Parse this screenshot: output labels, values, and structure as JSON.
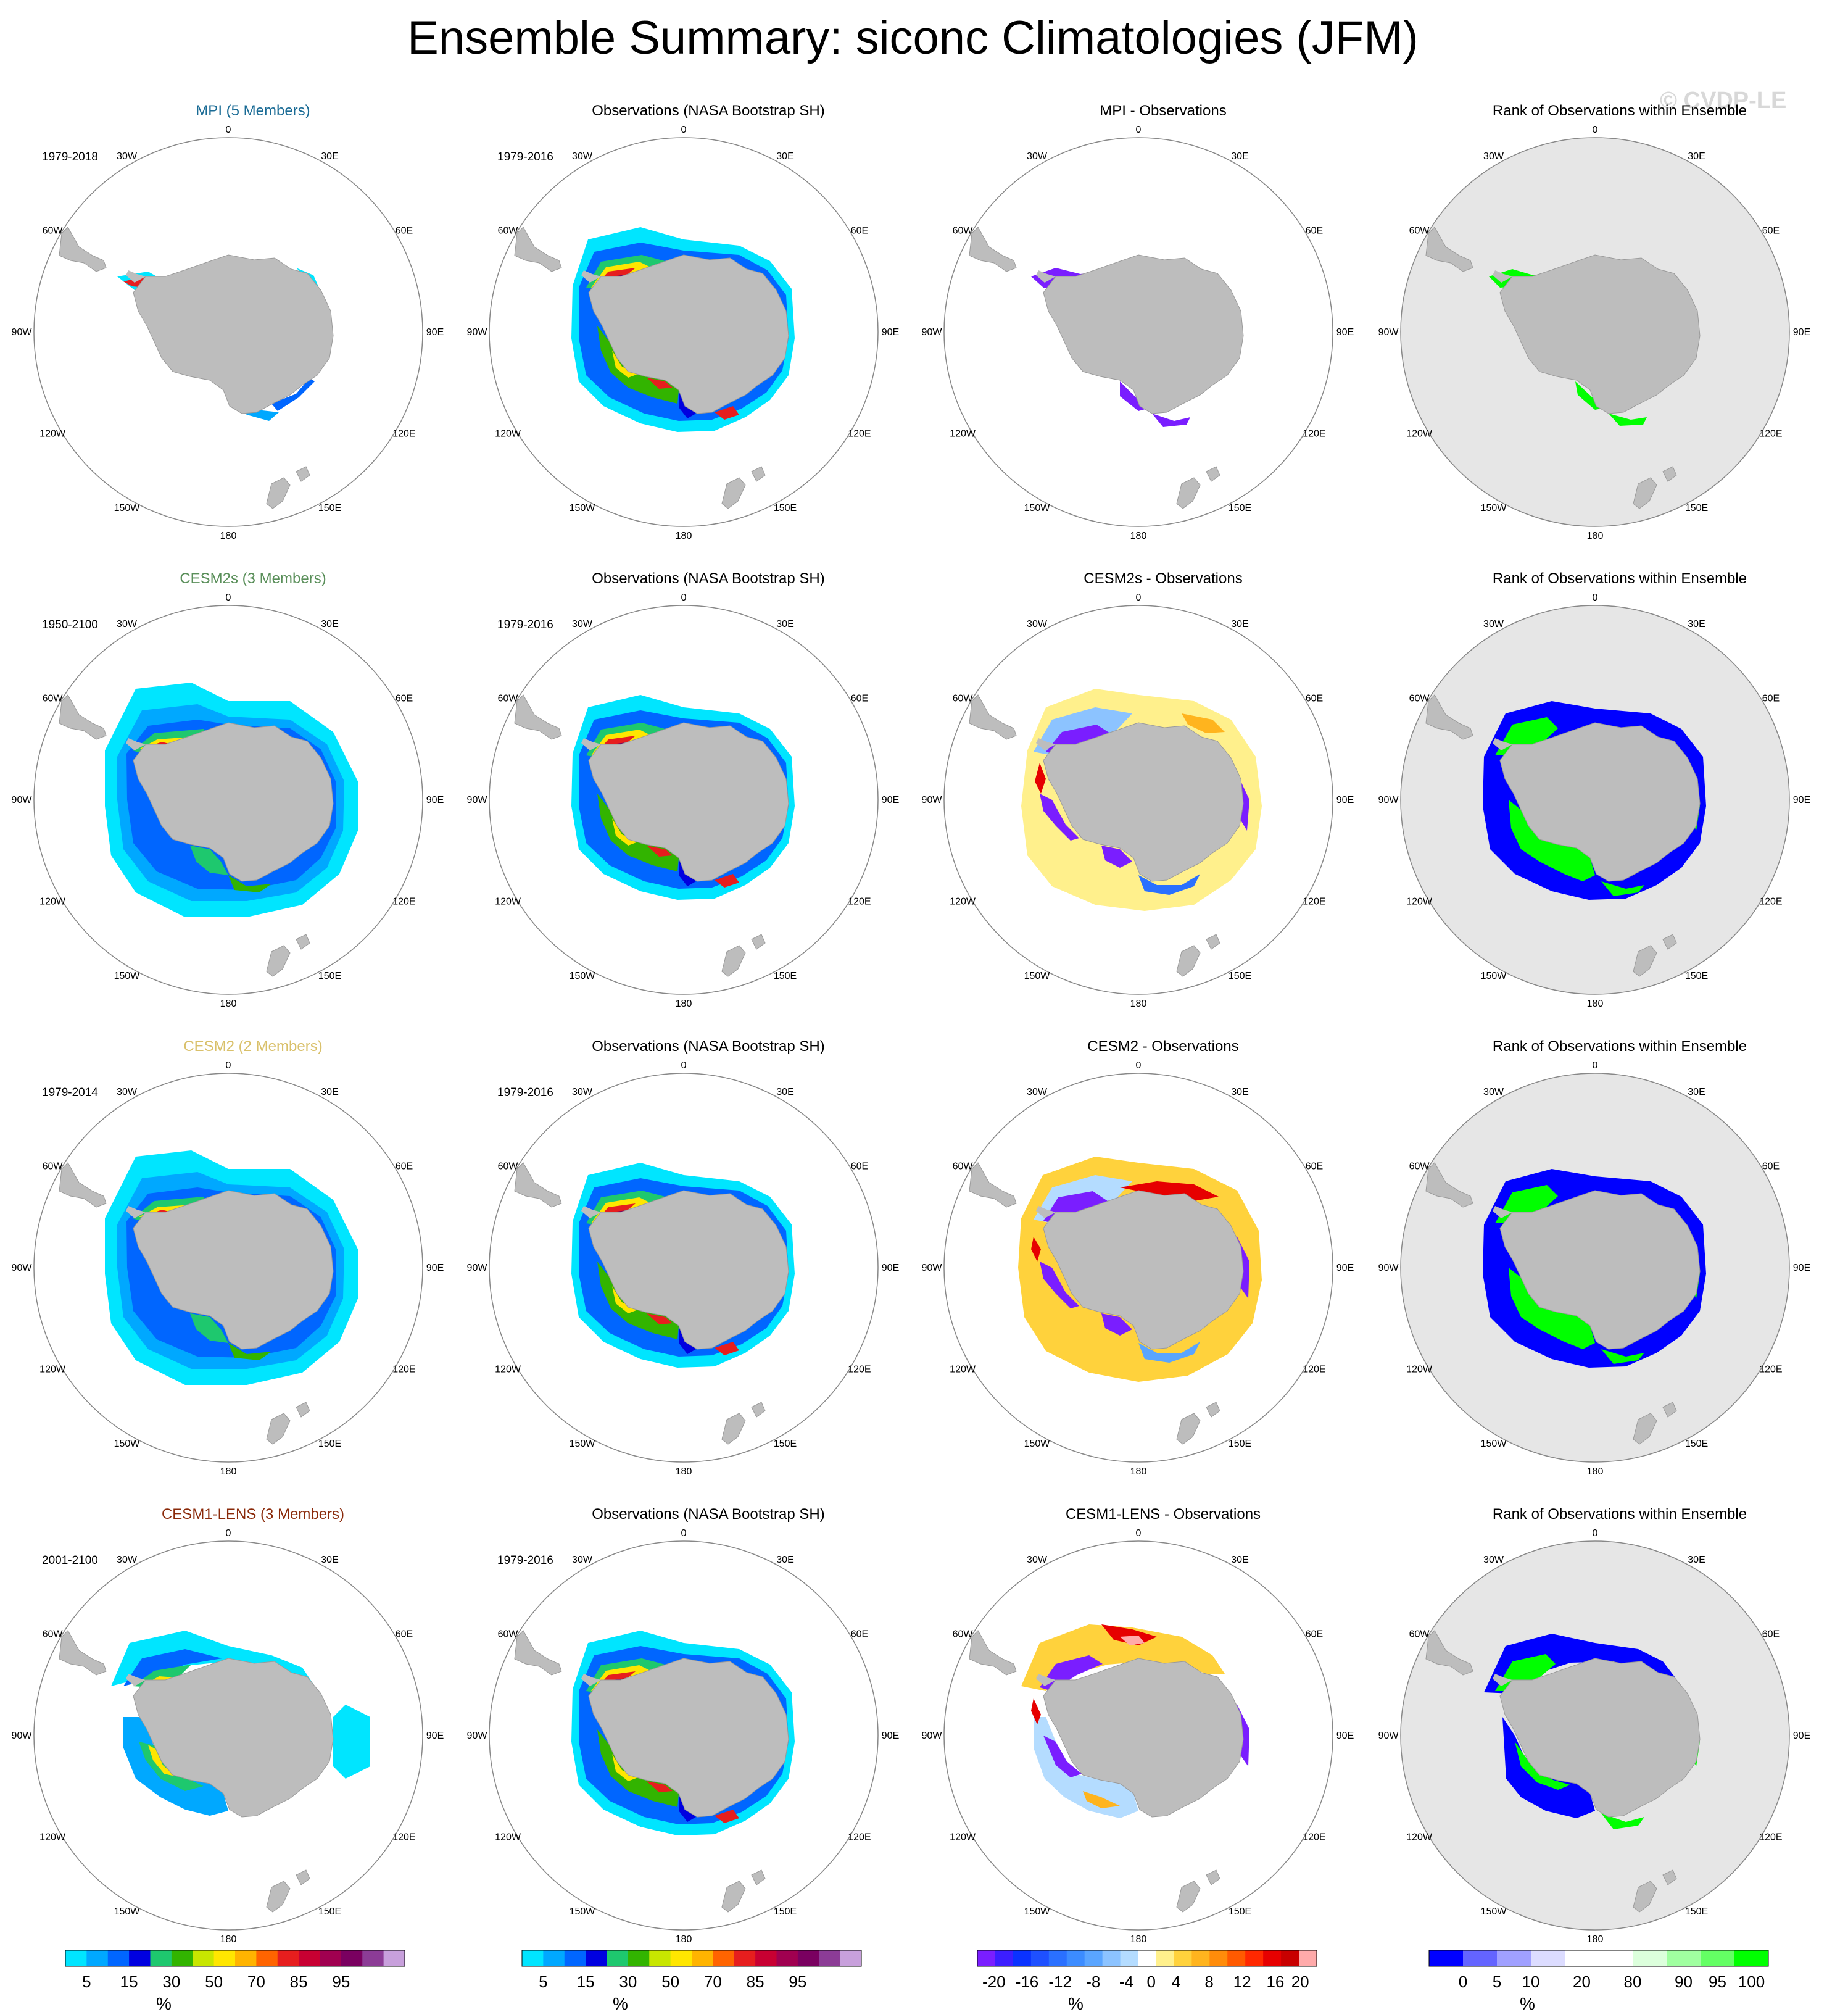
{
  "title": "Ensemble Summary: siconc Climatologies (JFM)",
  "watermark": "© CVDP-LE",
  "lon_labels": [
    "0",
    "30E",
    "60E",
    "90E",
    "120E",
    "150E",
    "180",
    "150W",
    "120W",
    "90W",
    "60W",
    "30W"
  ],
  "colors": {
    "land": "#bdbdbd",
    "rank_background": "#e6e6e6",
    "circle": "#888888"
  },
  "rows": [
    {
      "model": {
        "title": "MPI (5 Members)",
        "title_color": "#1a6b95",
        "period": "1979-2018",
        "extent": "small"
      },
      "obs": {
        "title": "Observations (NASA Bootstrap SH)",
        "period": "1979-2016"
      },
      "diff": {
        "title": "MPI - Observations",
        "pattern": "mpi"
      },
      "rank": {
        "title": "Rank of Observations within Ensemble",
        "pattern": "mpi"
      }
    },
    {
      "model": {
        "title": "CESM2s (3 Members)",
        "title_color": "#5a8f5a",
        "period": "1950-2100",
        "extent": "large"
      },
      "obs": {
        "title": "Observations (NASA Bootstrap SH)",
        "period": "1979-2016"
      },
      "diff": {
        "title": "CESM2s - Observations",
        "pattern": "cesm2s"
      },
      "rank": {
        "title": "Rank of Observations within Ensemble",
        "pattern": "cesm2s"
      }
    },
    {
      "model": {
        "title": "CESM2 (2 Members)",
        "title_color": "#d9c06a",
        "period": "1979-2014",
        "extent": "large"
      },
      "obs": {
        "title": "Observations (NASA Bootstrap SH)",
        "period": "1979-2016"
      },
      "diff": {
        "title": "CESM2 - Observations",
        "pattern": "cesm2"
      },
      "rank": {
        "title": "Rank of Observations within Ensemble",
        "pattern": "cesm2"
      }
    },
    {
      "model": {
        "title": "CESM1-LENS (3 Members)",
        "title_color": "#8a2a0a",
        "period": "2001-2100",
        "extent": "medium"
      },
      "obs": {
        "title": "Observations (NASA Bootstrap SH)",
        "period": "1979-2016"
      },
      "diff": {
        "title": "CESM1-LENS - Observations",
        "pattern": "lens"
      },
      "rank": {
        "title": "Rank of Observations within Ensemble",
        "pattern": "lens"
      }
    }
  ],
  "colorbars": {
    "siconc": {
      "colors": [
        "#00e5ff",
        "#00a8ff",
        "#0066ff",
        "#0000e0",
        "#1ec86e",
        "#32b400",
        "#c8e600",
        "#ffe600",
        "#ffb400",
        "#ff6400",
        "#e61e1e",
        "#c80032",
        "#a00050",
        "#7a0060",
        "#8c3c96",
        "#c8a0dc"
      ],
      "labels": [
        "5",
        "15",
        "30",
        "50",
        "70",
        "85",
        "95"
      ],
      "unit": "%"
    },
    "diff": {
      "colors": [
        "#7a1eff",
        "#3c1eff",
        "#0a32ff",
        "#1e50ff",
        "#2a70ff",
        "#3c8cff",
        "#5aa5ff",
        "#8cc3ff",
        "#b4dcff",
        "#ffffff",
        "#fff08c",
        "#ffd23c",
        "#ffb41e",
        "#ff8c0a",
        "#ff5a00",
        "#ff2800",
        "#e60000",
        "#c80000",
        "#ffaaaa"
      ],
      "labels": [
        "-20",
        "-16",
        "-12",
        "-8",
        "-4",
        "0",
        "4",
        "8",
        "12",
        "16",
        "20"
      ],
      "unit": "%"
    },
    "rank": {
      "colors": [
        "#0000ff",
        "#6464ff",
        "#a0a0ff",
        "#dcdcff",
        "#ffffff",
        "#ffffff",
        "#dcffdc",
        "#a0ffa0",
        "#64ff64",
        "#00ff00"
      ],
      "labels": [
        "0",
        "5",
        "10",
        "20",
        "80",
        "90",
        "95",
        "100"
      ],
      "unit": "%"
    }
  }
}
